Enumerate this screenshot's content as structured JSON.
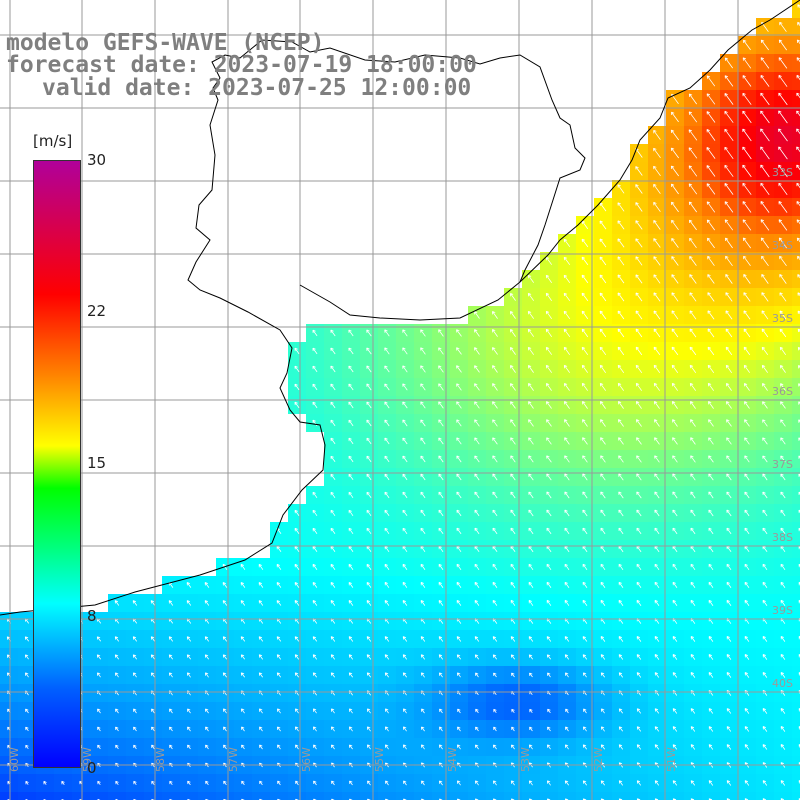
{
  "title": {
    "line1": "modelo GEFS-WAVE (NCEP)",
    "line2": "forecast date: 2023-07-19 18:00:00",
    "line3": "valid date: 2023-07-25 12:00:00"
  },
  "colorbar": {
    "unit": "[m/s]",
    "ticks": [
      "30",
      "22",
      "15",
      "8",
      "0"
    ],
    "stops": [
      {
        "value": 0,
        "color": "#0000ff"
      },
      {
        "value": 8,
        "color": "#00ffff"
      },
      {
        "value": 15,
        "color": "#ffff00"
      },
      {
        "value": 22,
        "color": "#ff8000"
      },
      {
        "value": 26,
        "color": "#ff0000"
      },
      {
        "value": 30,
        "color": "#b0009a"
      }
    ]
  },
  "map": {
    "variable": "wind speed",
    "lat_labels": [
      "33S",
      "34S",
      "35S",
      "36S",
      "37S",
      "38S",
      "39S",
      "40S"
    ],
    "lon_labels": [
      "60W",
      "59W",
      "58W",
      "57W",
      "56W",
      "55W",
      "54W",
      "53W",
      "52W",
      "51W"
    ],
    "land_color": "#ffffff",
    "grid_color": "#999999",
    "coast_color": "#000000"
  }
}
